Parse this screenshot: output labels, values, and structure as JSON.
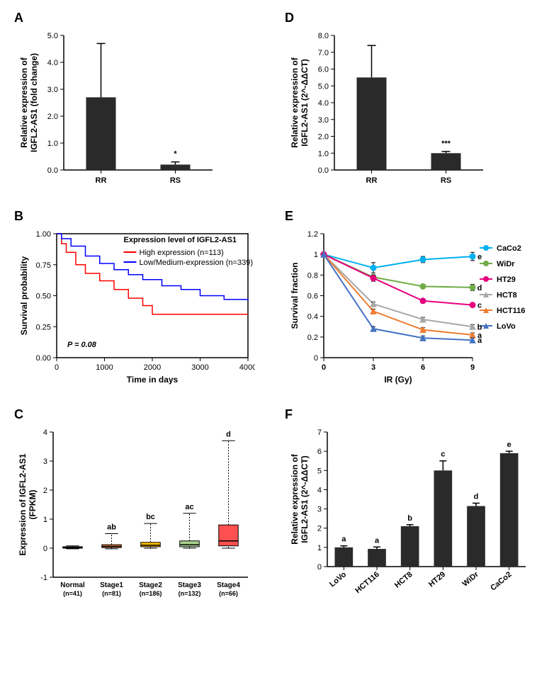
{
  "panelA": {
    "label": "A",
    "type": "bar",
    "ylabel": "Relative expression of\nIGFL2-AS1 (fold change)",
    "ylim": [
      0,
      5.0
    ],
    "ytick_step": 1.0,
    "categories": [
      "RR",
      "RS"
    ],
    "values": [
      2.7,
      0.2
    ],
    "errors": [
      2.0,
      0.1
    ],
    "sig": "*",
    "sig_x": 1,
    "bar_color": "#2a2a2a",
    "bar_width": 0.4
  },
  "panelB": {
    "label": "B",
    "type": "kaplan-meier",
    "ylabel": "Survival probability",
    "xlabel": "Time in days",
    "xlim": [
      0,
      4000
    ],
    "xtick_step": 1000,
    "ylim": [
      0,
      1.0
    ],
    "ytick_step": 0.25,
    "legend_title": "Expression level of IGFL2-AS1",
    "series": [
      {
        "name": "High expression (n=113)",
        "color": "#ff0000",
        "points": [
          [
            0,
            1.0
          ],
          [
            100,
            0.92
          ],
          [
            200,
            0.85
          ],
          [
            400,
            0.75
          ],
          [
            600,
            0.68
          ],
          [
            900,
            0.62
          ],
          [
            1200,
            0.55
          ],
          [
            1500,
            0.48
          ],
          [
            1800,
            0.42
          ],
          [
            2000,
            0.35
          ],
          [
            2500,
            0.35
          ],
          [
            4000,
            0.35
          ]
        ]
      },
      {
        "name": "Low/Medium-expression (n=339)",
        "color": "#0000ff",
        "points": [
          [
            0,
            1.0
          ],
          [
            100,
            0.96
          ],
          [
            300,
            0.9
          ],
          [
            600,
            0.82
          ],
          [
            900,
            0.76
          ],
          [
            1200,
            0.71
          ],
          [
            1500,
            0.67
          ],
          [
            1800,
            0.63
          ],
          [
            2200,
            0.58
          ],
          [
            2600,
            0.55
          ],
          [
            3000,
            0.5
          ],
          [
            3500,
            0.47
          ],
          [
            4000,
            0.46
          ]
        ]
      }
    ],
    "pvalue": "P = 0.08"
  },
  "panelC": {
    "label": "C",
    "type": "boxplot",
    "ylabel": "Expression of IGFL2-AS1\n(FPKM)",
    "ylim": [
      -1,
      4
    ],
    "ytick_step": 1,
    "categories": [
      "Normal\n(n=41)",
      "Stage1\n(n=81)",
      "Stage2\n(n=186)",
      "Stage3\n(n=132)",
      "Stage4\n(n=66)"
    ],
    "sig_labels": [
      "",
      "ab",
      "bc",
      "ac",
      "d"
    ],
    "boxes": [
      {
        "q1": 0.0,
        "median": 0.02,
        "q3": 0.05,
        "low": -0.02,
        "high": 0.08,
        "color": "#5a9bd5"
      },
      {
        "q1": 0.02,
        "median": 0.06,
        "q3": 0.12,
        "low": -0.02,
        "high": 0.5,
        "color": "#ed7d31"
      },
      {
        "q1": 0.05,
        "median": 0.1,
        "q3": 0.2,
        "low": 0.0,
        "high": 0.85,
        "color": "#ffc000"
      },
      {
        "q1": 0.05,
        "median": 0.12,
        "q3": 0.25,
        "low": 0.0,
        "high": 1.2,
        "color": "#a9d18e"
      },
      {
        "q1": 0.08,
        "median": 0.25,
        "q3": 0.8,
        "low": 0.0,
        "high": 3.7,
        "color": "#ff5050"
      }
    ]
  },
  "panelD": {
    "label": "D",
    "type": "bar",
    "ylabel": "Relative expression of\nIGFL2-AS1 (2^-ΔΔCT)",
    "ylim": [
      0,
      8.0
    ],
    "ytick_step": 1.0,
    "categories": [
      "RR",
      "RS"
    ],
    "values": [
      5.5,
      1.0
    ],
    "errors": [
      1.9,
      0.1
    ],
    "sig": "***",
    "sig_x": 1,
    "bar_color": "#2a2a2a",
    "bar_width": 0.4
  },
  "panelE": {
    "label": "E",
    "type": "line",
    "ylabel": "Survival fraction",
    "xlabel": "IR (Gy)",
    "xlim": [
      0,
      9
    ],
    "xtick_step": 3,
    "ylim": [
      0,
      1.2
    ],
    "ytick_step": 0.2,
    "series": [
      {
        "name": "CaCo2",
        "color": "#00b0f0",
        "marker": "circle",
        "sig": "e",
        "sig_color": "#00b0f0",
        "points": [
          [
            0,
            1.0
          ],
          [
            3,
            0.87
          ],
          [
            6,
            0.95
          ],
          [
            9,
            0.98
          ]
        ],
        "errors": [
          0,
          0.05,
          0.03,
          0.04
        ]
      },
      {
        "name": "WiDr",
        "color": "#70ad47",
        "marker": "circle",
        "sig": "d",
        "sig_color": "#70ad47",
        "points": [
          [
            0,
            1.0
          ],
          [
            3,
            0.78
          ],
          [
            6,
            0.69
          ],
          [
            9,
            0.68
          ]
        ],
        "errors": [
          0,
          0.02,
          0.02,
          0.03
        ]
      },
      {
        "name": "HT29",
        "color": "#e6007e",
        "marker": "circle",
        "sig": "c",
        "sig_color": "#e6007e",
        "points": [
          [
            0,
            1.0
          ],
          [
            3,
            0.77
          ],
          [
            6,
            0.55
          ],
          [
            9,
            0.51
          ]
        ],
        "errors": [
          0,
          0.03,
          0.02,
          0.02
        ]
      },
      {
        "name": "HCT8",
        "color": "#a6a6a6",
        "marker": "triangle",
        "sig": "b",
        "sig_color": "#a6a6a6",
        "points": [
          [
            0,
            1.0
          ],
          [
            3,
            0.52
          ],
          [
            6,
            0.37
          ],
          [
            9,
            0.3
          ]
        ],
        "errors": [
          0,
          0.02,
          0.02,
          0.02
        ]
      },
      {
        "name": "HCT116",
        "color": "#ed7d31",
        "marker": "triangle",
        "sig": "a",
        "sig_color": "#ed7d31",
        "points": [
          [
            0,
            1.0
          ],
          [
            3,
            0.45
          ],
          [
            6,
            0.27
          ],
          [
            9,
            0.22
          ]
        ],
        "errors": [
          0,
          0.02,
          0.02,
          0.02
        ]
      },
      {
        "name": "LoVo",
        "color": "#4472c4",
        "marker": "triangle",
        "sig": "a",
        "sig_color": "#4472c4",
        "points": [
          [
            0,
            1.0
          ],
          [
            3,
            0.28
          ],
          [
            6,
            0.19
          ],
          [
            9,
            0.17
          ]
        ],
        "errors": [
          0,
          0.02,
          0.02,
          0.02
        ]
      }
    ]
  },
  "panelF": {
    "label": "F",
    "type": "bar",
    "ylabel": "Relative expression of\nIGFL2-AS1 (2^-ΔΔCT)",
    "ylim": [
      0,
      7
    ],
    "ytick_step": 1,
    "categories": [
      "LoVo",
      "HCT116",
      "HCT8",
      "HT29",
      "WiDr",
      "CaCo2"
    ],
    "values": [
      1.0,
      0.92,
      2.1,
      5.0,
      3.15,
      5.9
    ],
    "errors": [
      0.08,
      0.1,
      0.08,
      0.5,
      0.15,
      0.1
    ],
    "sig_labels": [
      "a",
      "a",
      "b",
      "c",
      "d",
      "e"
    ],
    "bar_color": "#2a2a2a",
    "bar_width": 0.55
  }
}
